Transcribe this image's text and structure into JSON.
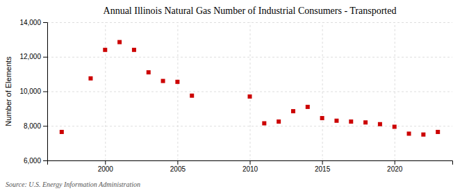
{
  "chart_data": {
    "type": "scatter",
    "title": "Annual Illinois Natural Gas Number of Industrial Consumers - Transported",
    "y_label": "Number of Elements",
    "annotations": [
      "Source: U.S. Energy Information Administration"
    ],
    "x": [
      1997,
      1999,
      2000,
      2001,
      2002,
      2003,
      2004,
      2005,
      2006,
      2010,
      2011,
      2012,
      2013,
      2014,
      2015,
      2016,
      2017,
      2018,
      2019,
      2020,
      2021,
      2022,
      2023
    ],
    "values": [
      7650,
      10750,
      12400,
      12850,
      12400,
      11100,
      10600,
      10550,
      9750,
      9700,
      8150,
      8250,
      8850,
      9100,
      8450,
      8300,
      8250,
      8200,
      8100,
      7950,
      7550,
      7500,
      7650
    ],
    "color": "#cc0000",
    "marker": "square",
    "xlim": [
      1996,
      2024
    ],
    "xticks": [
      2000,
      2005,
      2010,
      2015,
      2020
    ],
    "ylim": [
      6000,
      14000
    ],
    "yticks": [
      {
        "value": 6000,
        "label": "6,000"
      },
      {
        "value": 8000,
        "label": "8,000"
      },
      {
        "value": 10000,
        "label": "10,000"
      },
      {
        "value": 12000,
        "label": "12,000"
      },
      {
        "value": 14000,
        "label": "14,000"
      }
    ],
    "grid": true
  }
}
